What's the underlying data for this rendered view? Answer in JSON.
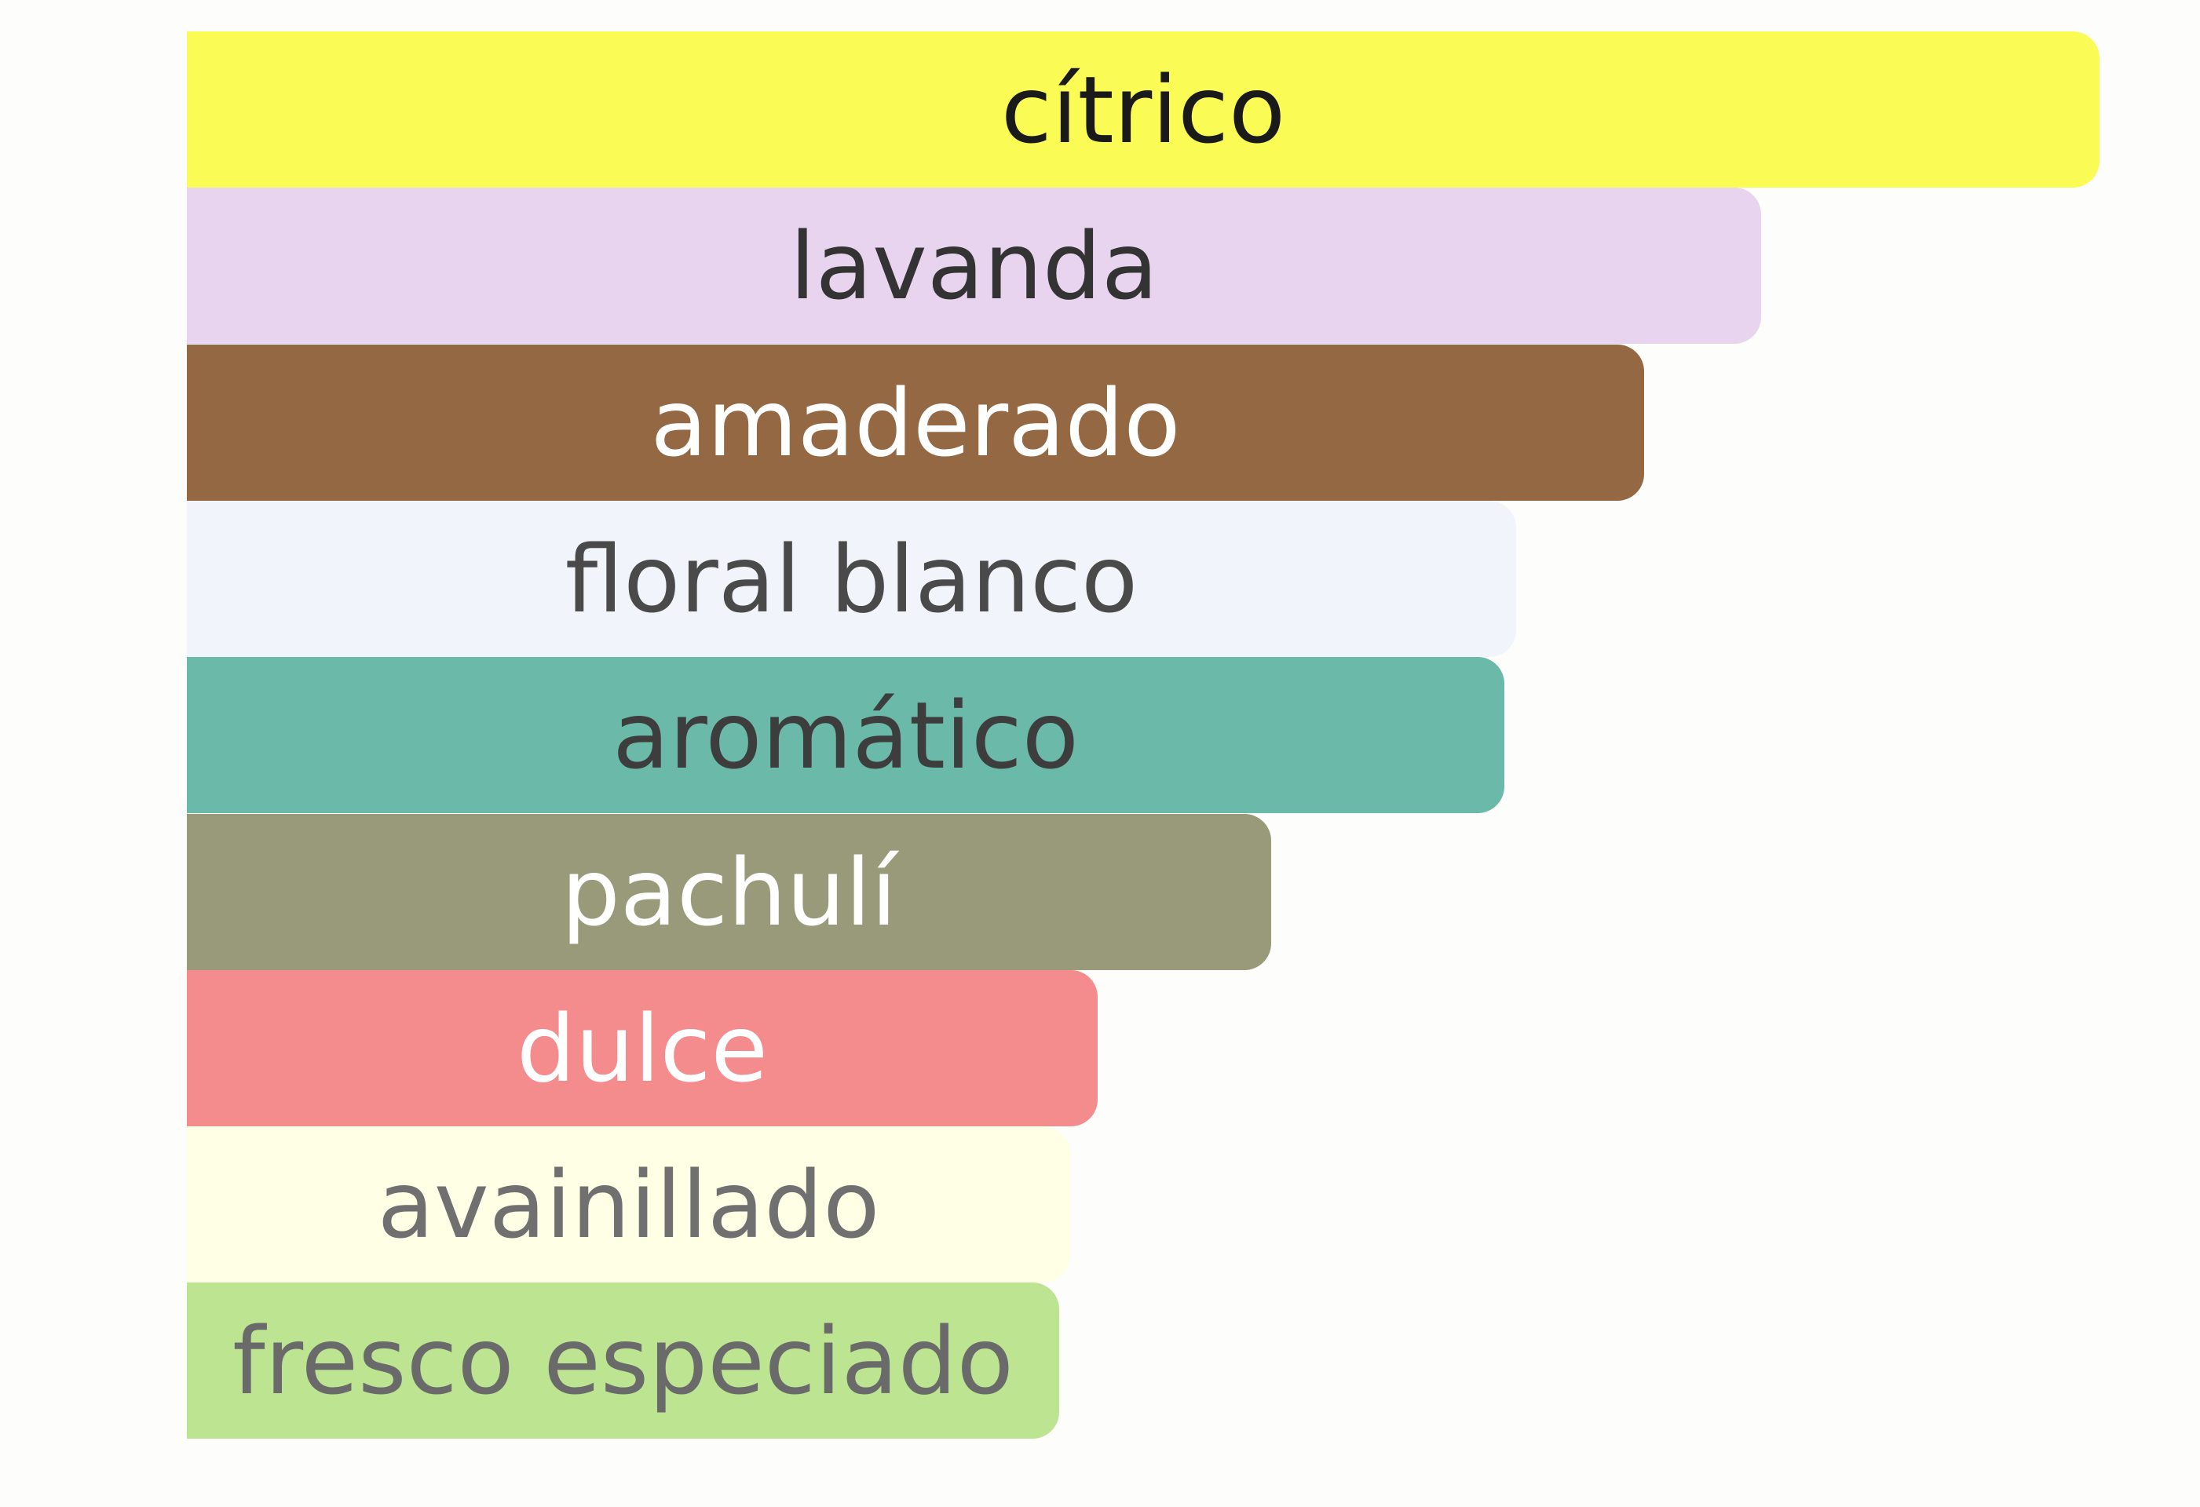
{
  "chart_data": {
    "type": "bar",
    "orientation": "horizontal",
    "categories": [
      "cítrico",
      "lavanda",
      "amaderado",
      "floral blanco",
      "aromático",
      "pachulí",
      "dulce",
      "avainillado",
      "fresco especiado"
    ],
    "values": [
      100,
      82.3,
      76.2,
      69.5,
      68.9,
      56.7,
      47.6,
      46.2,
      45.6
    ],
    "value_scale": "percent of strongest accord",
    "bar_colors": [
      "#fafc55",
      "#e8d4ee",
      "#936843",
      "#f2f4fb",
      "#6bb9a8",
      "#999a7a",
      "#f48b8c",
      "#feffe5",
      "#bde491"
    ],
    "label_colors": [
      "#1a1a1a",
      "#333333",
      "#ffffff",
      "#4a4a4a",
      "#3d3d3d",
      "#ffffff",
      "#ffffff",
      "#707070",
      "#6a6a6a"
    ],
    "title": "",
    "xlabel": "",
    "ylabel": "",
    "xlim": [
      0,
      100
    ],
    "grid": false,
    "legend": "none"
  }
}
